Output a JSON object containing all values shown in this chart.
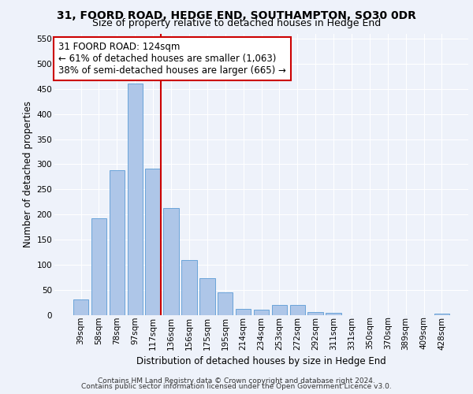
{
  "title1": "31, FOORD ROAD, HEDGE END, SOUTHAMPTON, SO30 0DR",
  "title2": "Size of property relative to detached houses in Hedge End",
  "xlabel": "Distribution of detached houses by size in Hedge End",
  "ylabel": "Number of detached properties",
  "categories": [
    "39sqm",
    "58sqm",
    "78sqm",
    "97sqm",
    "117sqm",
    "136sqm",
    "156sqm",
    "175sqm",
    "195sqm",
    "214sqm",
    "234sqm",
    "253sqm",
    "272sqm",
    "292sqm",
    "311sqm",
    "331sqm",
    "350sqm",
    "370sqm",
    "389sqm",
    "409sqm",
    "428sqm"
  ],
  "values": [
    32,
    192,
    288,
    460,
    292,
    213,
    110,
    73,
    46,
    13,
    11,
    20,
    20,
    7,
    4,
    0,
    0,
    0,
    0,
    0,
    3
  ],
  "bar_color": "#aec6e8",
  "bar_edgecolor": "#5b9bd5",
  "vline_index": 4,
  "vline_color": "#cc0000",
  "annotation_text": "31 FOORD ROAD: 124sqm\n← 61% of detached houses are smaller (1,063)\n38% of semi-detached houses are larger (665) →",
  "annotation_box_color": "#ffffff",
  "annotation_box_edgecolor": "#cc0000",
  "ylim": [
    0,
    560
  ],
  "yticks": [
    0,
    50,
    100,
    150,
    200,
    250,
    300,
    350,
    400,
    450,
    500,
    550
  ],
  "footer1": "Contains HM Land Registry data © Crown copyright and database right 2024.",
  "footer2": "Contains public sector information licensed under the Open Government Licence v3.0.",
  "bg_color": "#eef2fa",
  "plot_bg_color": "#eef2fa",
  "grid_color": "#ffffff",
  "title_fontsize": 10,
  "subtitle_fontsize": 9,
  "axis_label_fontsize": 8.5,
  "tick_fontsize": 7.5,
  "annotation_fontsize": 8.5,
  "footer_fontsize": 6.5
}
